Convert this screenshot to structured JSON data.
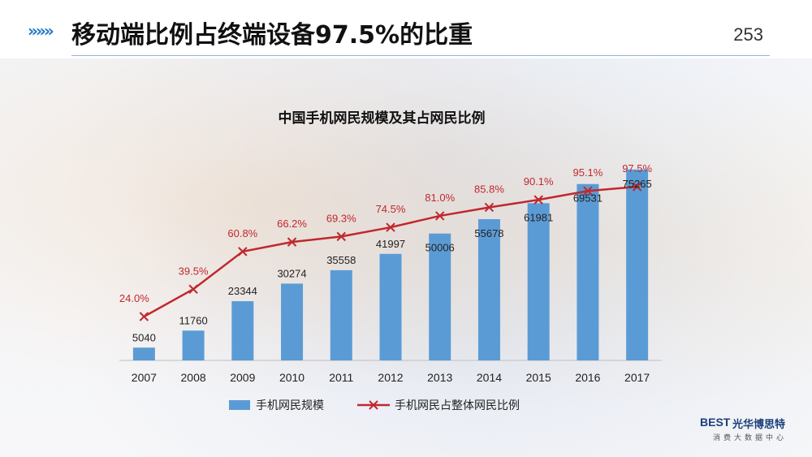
{
  "header": {
    "title": "移动端比例占终端设备97.5%的比重",
    "page_number": "253",
    "arrow_glyph": "»»»"
  },
  "logo": {
    "mark": "BEST",
    "name": "光华博思特",
    "subtitle": "消费大数据中心"
  },
  "colors": {
    "bar": "#5b9bd5",
    "line": "#c0282e",
    "line_label": "#c0282e",
    "accent": "#1e78c8"
  },
  "chart_data": {
    "type": "bar",
    "title": "中国手机网民规模及其占网民比例",
    "categories": [
      "2007",
      "2008",
      "2009",
      "2010",
      "2011",
      "2012",
      "2013",
      "2014",
      "2015",
      "2016",
      "2017"
    ],
    "series": [
      {
        "name": "手机网民规模",
        "type": "bar",
        "values": [
          5040,
          11760,
          23344,
          30274,
          35558,
          41997,
          50006,
          55678,
          61981,
          69531,
          75265
        ],
        "labels": [
          "5040",
          "11760",
          "23344",
          "30274",
          "35558",
          "41997",
          "50006",
          "55678",
          "61981",
          "69531",
          "75265"
        ]
      },
      {
        "name": "手机网民占整体网民比例",
        "type": "line",
        "values": [
          24.0,
          39.5,
          60.8,
          66.2,
          69.3,
          74.5,
          81.0,
          85.8,
          90.1,
          95.1,
          97.5
        ],
        "labels": [
          "24.0%",
          "39.5%",
          "60.8%",
          "66.2%",
          "69.3%",
          "74.5%",
          "81.0%",
          "85.8%",
          "90.1%",
          "95.1%",
          "97.5%"
        ]
      }
    ],
    "legend_position": "bottom",
    "grid": false
  }
}
